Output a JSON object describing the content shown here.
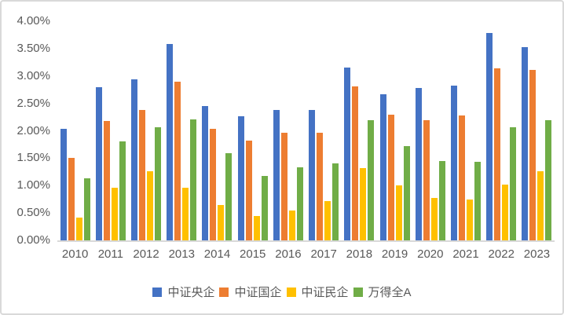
{
  "chart_data": {
    "type": "bar",
    "title": "",
    "xlabel": "",
    "ylabel": "",
    "grid": false,
    "legend_position": "bottom",
    "ylim": [
      0,
      4
    ],
    "ytick_step": 0.5,
    "ytick_labels": [
      "0.00%",
      "0.50%",
      "1.00%",
      "1.50%",
      "2.00%",
      "2.50%",
      "3.00%",
      "3.50%",
      "4.00%"
    ],
    "categories": [
      "2010",
      "2011",
      "2012",
      "2013",
      "2014",
      "2015",
      "2016",
      "2017",
      "2018",
      "2019",
      "2020",
      "2021",
      "2022",
      "2023"
    ],
    "series": [
      {
        "name": "中证央企",
        "color": "#4472C4",
        "values": [
          2.04,
          2.8,
          2.94,
          3.58,
          2.45,
          2.27,
          2.38,
          2.38,
          3.15,
          2.66,
          2.78,
          2.82,
          3.78,
          3.53
        ]
      },
      {
        "name": "中证国企",
        "color": "#ED7D31",
        "values": [
          1.51,
          2.18,
          2.38,
          2.89,
          2.04,
          1.82,
          1.96,
          1.97,
          2.81,
          2.3,
          2.2,
          2.28,
          3.14,
          3.11
        ]
      },
      {
        "name": "中证民企",
        "color": "#FFC000",
        "values": [
          0.41,
          0.96,
          1.26,
          0.96,
          0.65,
          0.44,
          0.55,
          0.71,
          1.32,
          1.0,
          0.78,
          0.75,
          1.02,
          1.26
        ]
      },
      {
        "name": "万得全A",
        "color": "#70AD47",
        "values": [
          1.14,
          1.8,
          2.06,
          2.21,
          1.59,
          1.18,
          1.33,
          1.41,
          2.2,
          1.72,
          1.45,
          1.43,
          2.06,
          2.2
        ]
      }
    ],
    "colors": {
      "axis_text": "#595959",
      "axis_line": "#D9D9D9",
      "frame_border": "#D9D9D9",
      "background": "#FFFFFF"
    }
  }
}
